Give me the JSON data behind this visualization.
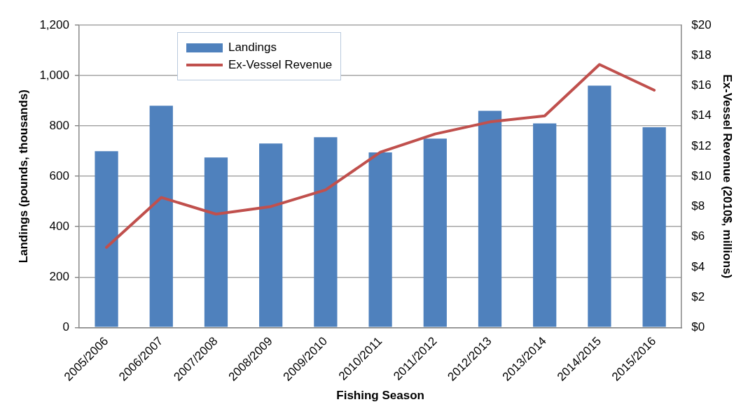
{
  "chart_data": {
    "type": "bar",
    "xlabel": "Fishing Season",
    "ylabel": "Landings (pounds, thousands)",
    "y2label": "Ex-Vessel Revenue (2010$, millions)",
    "categories": [
      "2005/2006",
      "2006/2007",
      "2007/2008",
      "2008/2009",
      "2009/2010",
      "2010/2011",
      "2011/2012",
      "2012/2013",
      "2013/2014",
      "2014/2015",
      "2015/2016"
    ],
    "series": [
      {
        "name": "Landings",
        "color": "#4f81bd",
        "values": [
          700,
          880,
          675,
          730,
          755,
          695,
          750,
          860,
          810,
          960,
          795
        ]
      },
      {
        "name": "Ex-Vessel Revenue",
        "type": "line",
        "axis": "y2",
        "color": "#c0504d",
        "values": [
          5.3,
          8.6,
          7.5,
          8.0,
          9.1,
          11.6,
          12.8,
          13.6,
          14.0,
          17.4,
          15.7
        ]
      }
    ],
    "ylim": [
      0,
      1200
    ],
    "yticks": [
      0,
      {
        "value": 200,
        "label": "200"
      },
      {
        "value": 400,
        "label": "400"
      },
      {
        "value": 600,
        "label": "600"
      },
      {
        "value": 800,
        "label": "800"
      },
      {
        "value": 1000,
        "label": "1,000"
      },
      {
        "value": 1200,
        "label": "1,200"
      }
    ],
    "y2lim": [
      0,
      20
    ],
    "y2ticks": [
      {
        "value": 0,
        "label": "$0"
      },
      {
        "value": 2,
        "label": "$2"
      },
      {
        "value": 4,
        "label": "$4"
      },
      {
        "value": 6,
        "label": "$6"
      },
      {
        "value": 8,
        "label": "$8"
      },
      {
        "value": 10,
        "label": "$10"
      },
      {
        "value": 12,
        "label": "$12"
      },
      {
        "value": 14,
        "label": "$14"
      },
      {
        "value": 16,
        "label": "$16"
      },
      {
        "value": 18,
        "label": "$18"
      },
      {
        "value": 20,
        "label": "$20"
      }
    ],
    "grid": "y",
    "legend": "top left",
    "marker": "none",
    "line_style": "solid"
  }
}
